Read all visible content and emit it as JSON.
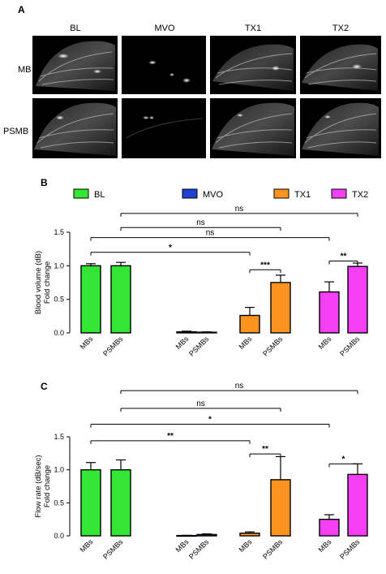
{
  "panel_a": {
    "label": "A",
    "columns": [
      "BL",
      "MVO",
      "TX1",
      "TX2"
    ],
    "rows": [
      "MB",
      "PSMB"
    ]
  },
  "legend": [
    {
      "name": "BL",
      "color": "#33e633"
    },
    {
      "name": "MVO",
      "color": "#1f3fd9"
    },
    {
      "name": "TX1",
      "color": "#ff9320"
    },
    {
      "name": "TX2",
      "color": "#f53ff5"
    }
  ],
  "chart_data": [
    {
      "panel": "B",
      "type": "bar",
      "ylabel": [
        "Blood volume (dB)",
        "Fold change"
      ],
      "ylim": [
        0,
        1.5
      ],
      "yticks": [
        "0.0",
        "0.5",
        "1.0",
        "1.5"
      ],
      "groups": [
        "BL",
        "MVO",
        "TX1",
        "TX2"
      ],
      "categories": [
        "MBs",
        "PSMBs",
        "MBs",
        "PSMBs",
        "MBs",
        "PSMBs",
        "MBs",
        "PSMBs"
      ],
      "colors": [
        "#33e633",
        "#33e633",
        "#1f3fd9",
        "#1f3fd9",
        "#ff9320",
        "#ff9320",
        "#f53ff5",
        "#f53ff5"
      ],
      "values": [
        1.0,
        1.0,
        0.015,
        0.01,
        0.26,
        0.75,
        0.61,
        0.99
      ],
      "errors": [
        0.03,
        0.05,
        0.01,
        0.005,
        0.12,
        0.11,
        0.15,
        0.05
      ],
      "significance": [
        {
          "from": 1,
          "to": 7,
          "text": "ns",
          "y": 1.78
        },
        {
          "from": 1,
          "to": 5,
          "text": "ns",
          "y": 1.57
        },
        {
          "from": 0,
          "to": 6,
          "text": "ns",
          "y": 1.42
        },
        {
          "from": 0,
          "to": 4,
          "text": "*",
          "y": 1.2
        },
        {
          "from": 4,
          "to": 5,
          "text": "***",
          "y": 0.94
        },
        {
          "from": 6,
          "to": 7,
          "text": "**",
          "y": 1.07
        }
      ]
    },
    {
      "panel": "C",
      "type": "bar",
      "ylabel": [
        "Flow rate (dB/sec)",
        "Fold change"
      ],
      "ylim": [
        0,
        1.5
      ],
      "yticks": [
        "0.0",
        "0.5",
        "1.0",
        "1.5"
      ],
      "groups": [
        "BL",
        "MVO",
        "TX1",
        "TX2"
      ],
      "categories": [
        "MBs",
        "PSMBs",
        "MBs",
        "PSMBs",
        "MBs",
        "PSMBs",
        "MBs",
        "PSMBs"
      ],
      "colors": [
        "#33e633",
        "#33e633",
        "#1f3fd9",
        "#1f3fd9",
        "#ff9320",
        "#ff9320",
        "#f53ff5",
        "#f53ff5"
      ],
      "values": [
        1.0,
        1.0,
        0.005,
        0.02,
        0.04,
        0.85,
        0.25,
        0.93
      ],
      "errors": [
        0.11,
        0.15,
        0.003,
        0.01,
        0.02,
        0.35,
        0.07,
        0.16
      ],
      "significance": [
        {
          "from": 1,
          "to": 7,
          "text": "ns",
          "y": 2.2
        },
        {
          "from": 1,
          "to": 5,
          "text": "ns",
          "y": 1.93
        },
        {
          "from": 0,
          "to": 6,
          "text": "*",
          "y": 1.69
        },
        {
          "from": 0,
          "to": 4,
          "text": "**",
          "y": 1.44
        },
        {
          "from": 4,
          "to": 5,
          "text": "**",
          "y": 1.24
        },
        {
          "from": 6,
          "to": 7,
          "text": "*",
          "y": 1.09
        }
      ]
    }
  ]
}
